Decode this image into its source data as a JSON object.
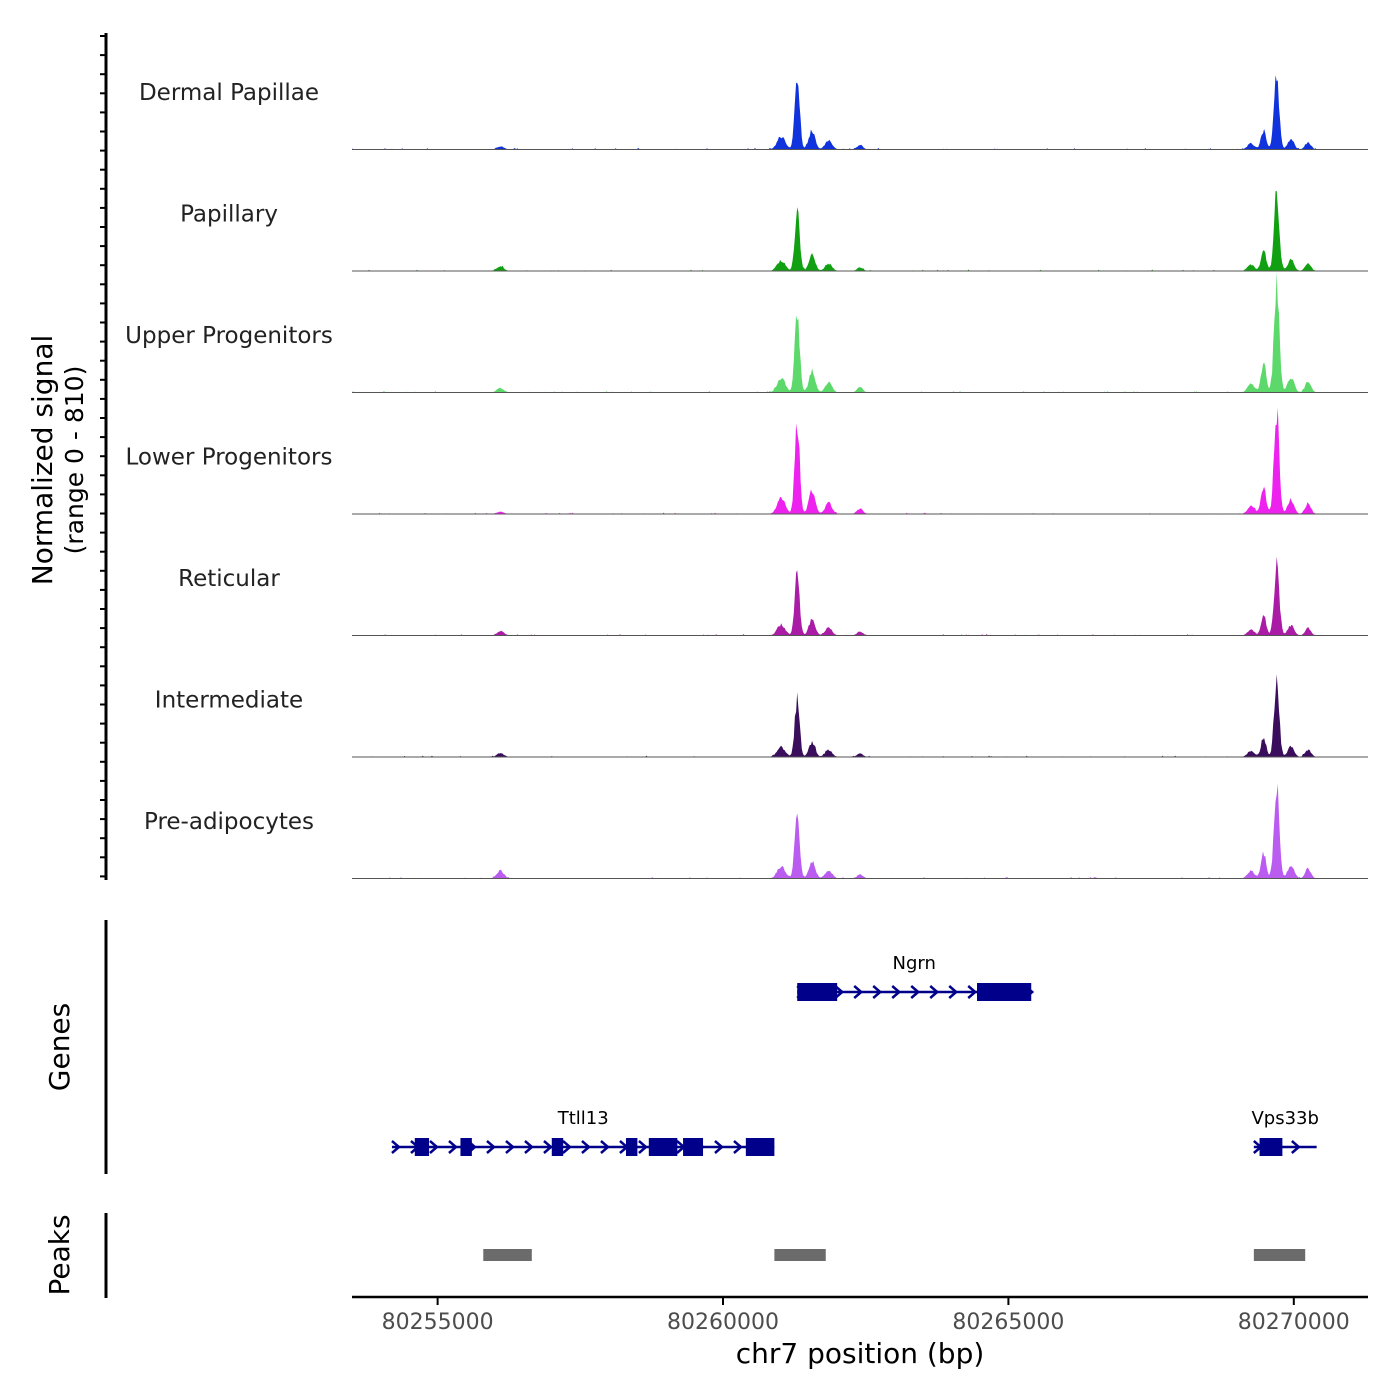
{
  "chart_data": {
    "type": "area",
    "title": "",
    "y_axis_label": "Normalized signal",
    "y_axis_sublabel": "(range 0 - 810)",
    "ylim": [
      0,
      810
    ],
    "xlabel": "chr7 position (bp)",
    "xlim": [
      80253500,
      80271300
    ],
    "x_ticks": [
      80255000,
      80260000,
      80265000,
      80270000
    ],
    "x_tick_labels": [
      "80255000",
      "80260000",
      "80265000",
      "80270000"
    ],
    "peak_centers": [
      80256100,
      80261300,
      80269700
    ],
    "track_start": 80253500,
    "track_end": 80270400,
    "series": [
      {
        "name": "Dermal Papillae",
        "color": "#1133dd",
        "peak_heights": [
          25,
          620,
          600
        ]
      },
      {
        "name": "Papillary",
        "color": "#11a011",
        "peak_heights": [
          35,
          500,
          650
        ]
      },
      {
        "name": "Upper Progenitors",
        "color": "#5cd96a",
        "peak_heights": [
          35,
          690,
          900
        ]
      },
      {
        "name": "Lower Progenitors",
        "color": "#ee22ee",
        "peak_heights": [
          20,
          740,
          840
        ]
      },
      {
        "name": "Reticular",
        "color": "#aa1ca6",
        "peak_heights": [
          35,
          520,
          590
        ]
      },
      {
        "name": "Intermediate",
        "color": "#3a0e5c",
        "peak_heights": [
          30,
          470,
          600
        ]
      },
      {
        "name": "Pre-adipocytes",
        "color": "#bb5cf0",
        "peak_heights": [
          65,
          570,
          790
        ]
      }
    ],
    "genes_panel": {
      "label": "Genes",
      "color": "#00008b",
      "genes": [
        {
          "name": "Ngrn",
          "strand": "+",
          "row": 1,
          "start": 80261300,
          "end": 80265400,
          "exons": [
            [
              80261300,
              80262000
            ],
            [
              80264450,
              80265400
            ]
          ]
        },
        {
          "name": "Ttll13",
          "strand": "+",
          "row": 2,
          "start": 80254200,
          "end": 80260900,
          "exons": [
            [
              80254600,
              80254850
            ],
            [
              80255400,
              80255600
            ],
            [
              80257000,
              80257200
            ],
            [
              80258300,
              80258500
            ],
            [
              80258700,
              80259200
            ],
            [
              80259300,
              80259650
            ],
            [
              80260400,
              80260900
            ]
          ]
        },
        {
          "name": "Vps33b",
          "strand": "+",
          "row": 2,
          "start": 80269300,
          "end": 80270400,
          "exons": [
            [
              80269400,
              80269800
            ]
          ]
        }
      ]
    },
    "peaks_panel": {
      "label": "Peaks",
      "color": "#6b6b6b",
      "regions": [
        [
          80255800,
          80256650
        ],
        [
          80260900,
          80261800
        ],
        [
          80269300,
          80270200
        ]
      ]
    }
  }
}
